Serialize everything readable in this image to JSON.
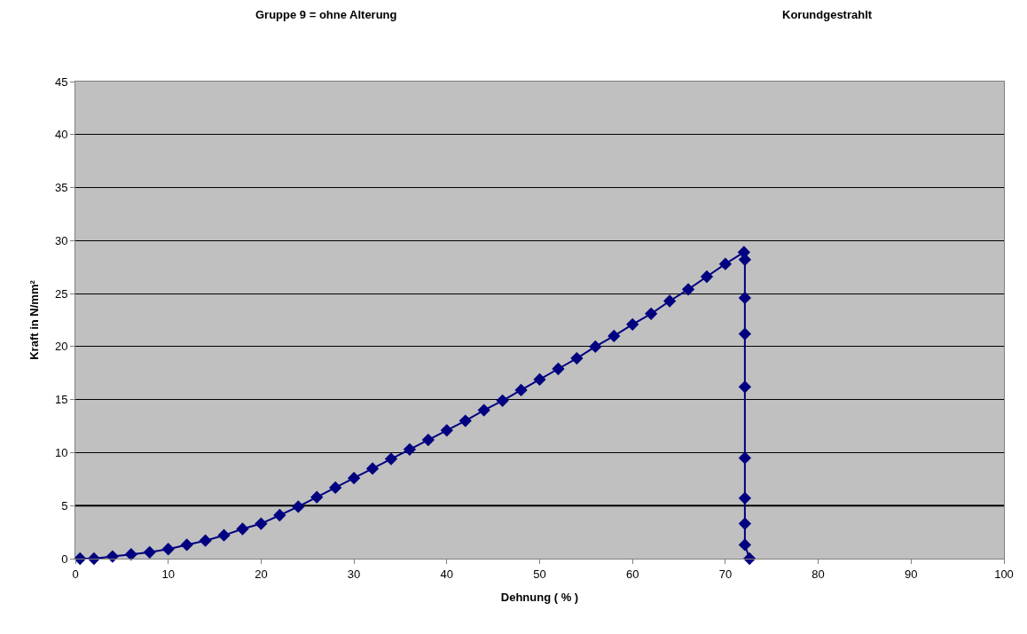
{
  "chart_data": {
    "type": "line",
    "title": "Gruppe 9 = ohne Alterung",
    "subtitle": "Korundgestrahlt",
    "xlabel": "Dehnung ( % )",
    "ylabel": "Kraft in N/mm²",
    "x": [
      0.5,
      2,
      4,
      6,
      8,
      10,
      12,
      14,
      16,
      18,
      20,
      22,
      24,
      26,
      28,
      30,
      32,
      34,
      36,
      38,
      40,
      42,
      44,
      46,
      48,
      50,
      52,
      54,
      56,
      58,
      60,
      62,
      64,
      66,
      68,
      70,
      72,
      72.1,
      72.1,
      72.1,
      72.1,
      72.1,
      72.1,
      72.1,
      72.1,
      72.6
    ],
    "series": [
      {
        "color": "#000080",
        "values": [
          0,
          0,
          0.2,
          0.4,
          0.6,
          0.9,
          1.3,
          1.7,
          2.2,
          2.8,
          3.3,
          4.1,
          4.9,
          5.8,
          6.7,
          7.6,
          8.5,
          9.4,
          10.3,
          11.2,
          12.1,
          13.0,
          14.0,
          14.9,
          15.9,
          16.9,
          17.9,
          18.9,
          20.0,
          21.0,
          22.1,
          23.1,
          24.3,
          25.4,
          26.6,
          27.8,
          28.9,
          28.2,
          24.6,
          21.2,
          16.2,
          9.5,
          5.7,
          3.3,
          1.3,
          0
        ]
      }
    ],
    "xlim": [
      0,
      100
    ],
    "xticks": [
      0,
      10,
      20,
      30,
      40,
      50,
      60,
      70,
      80,
      90,
      100
    ],
    "ylim": [
      0,
      45
    ],
    "yticks": [
      0,
      5,
      10,
      15,
      20,
      25,
      30,
      35,
      40,
      45
    ],
    "ref_lines": [
      {
        "axis": "y",
        "value": 5,
        "color": "#000000"
      }
    ],
    "grid": "y",
    "marker": "diamond",
    "line_style": "solid"
  }
}
